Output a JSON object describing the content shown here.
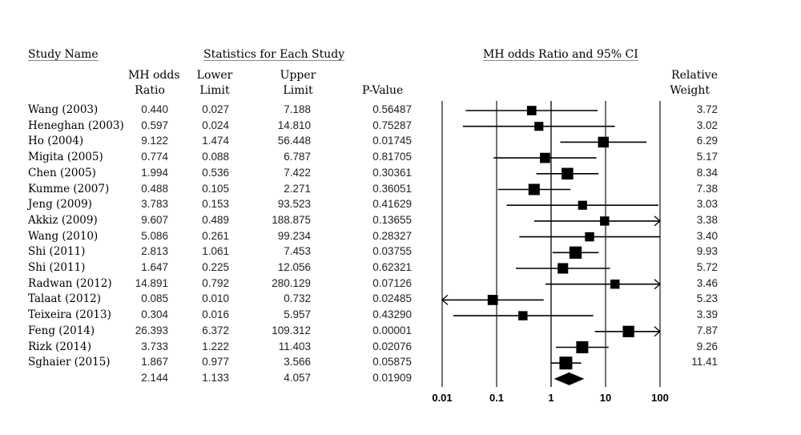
{
  "headers": {
    "study_name": "Study Name",
    "stats_group": "Statistics for Each Study",
    "mh_odds_line1": "MH odds",
    "mh_odds_line2": "Ratio",
    "lower_line1": "Lower",
    "lower_line2": "Limit",
    "upper_line1": "Upper",
    "upper_line2": "Limit",
    "pvalue": "P-Value",
    "plot_title": "MH odds Ratio and 95% CI",
    "weight_line1": "Relative",
    "weight_line2": "Weight"
  },
  "chart_data": {
    "type": "forest",
    "title": "MH odds Ratio and 95% CI",
    "x_scale": "log",
    "xlim": [
      0.01,
      100
    ],
    "x_ticks": [
      "0.01",
      "0.1",
      "1",
      "10",
      "100"
    ],
    "grid": true,
    "studies": [
      {
        "name": "Wang (2003)",
        "or": "0.440",
        "lower": "0.027",
        "upper": "7.188",
        "p": "0.56487",
        "weight": "3.72"
      },
      {
        "name": "Heneghan (2003)",
        "or": "0.597",
        "lower": "0.024",
        "upper": "14.810",
        "p": "0.75287",
        "weight": "3.02"
      },
      {
        "name": "Ho (2004)",
        "or": "9.122",
        "lower": "1.474",
        "upper": "56.448",
        "p": "0.01745",
        "weight": "6.29"
      },
      {
        "name": "Migita (2005)",
        "or": "0.774",
        "lower": "0.088",
        "upper": "6.787",
        "p": "0.81705",
        "weight": "5.17"
      },
      {
        "name": "Chen (2005)",
        "or": "1.994",
        "lower": "0.536",
        "upper": "7.422",
        "p": "0.30361",
        "weight": "8.34"
      },
      {
        "name": "Kumme (2007)",
        "or": "0.488",
        "lower": "0.105",
        "upper": "2.271",
        "p": "0.36051",
        "weight": "7.38"
      },
      {
        "name": "Jeng (2009)",
        "or": "3.783",
        "lower": "0.153",
        "upper": "93.523",
        "p": "0.41629",
        "weight": "3.03"
      },
      {
        "name": "Akkiz (2009)",
        "or": "9.607",
        "lower": "0.489",
        "upper": "188.875",
        "p": "0.13655",
        "weight": "3.38"
      },
      {
        "name": "Wang (2010)",
        "or": "5.086",
        "lower": "0.261",
        "upper": "99.234",
        "p": "0.28327",
        "weight": "3.40"
      },
      {
        "name": "Shi (2011)",
        "or": "2.813",
        "lower": "1.061",
        "upper": "7.453",
        "p": "0.03755",
        "weight": "9.93"
      },
      {
        "name": "Shi (2011)",
        "or": "1.647",
        "lower": "0.225",
        "upper": "12.056",
        "p": "0.62321",
        "weight": "5.72"
      },
      {
        "name": "Radwan (2012)",
        "or": "14.891",
        "lower": "0.792",
        "upper": "280.129",
        "p": "0.07126",
        "weight": "3.46"
      },
      {
        "name": "Talaat (2012)",
        "or": "0.085",
        "lower": "0.010",
        "upper": "0.732",
        "p": "0.02485",
        "weight": "5.23"
      },
      {
        "name": "Teixeira (2013)",
        "or": "0.304",
        "lower": "0.016",
        "upper": "5.957",
        "p": "0.43290",
        "weight": "3.39"
      },
      {
        "name": "Feng (2014)",
        "or": "26.393",
        "lower": "6.372",
        "upper": "109.312",
        "p": "0.00001",
        "weight": "7.87"
      },
      {
        "name": "Rizk (2014)",
        "or": "3.733",
        "lower": "1.222",
        "upper": "11.403",
        "p": "0.02076",
        "weight": "9.26"
      },
      {
        "name": "Sghaier (2015)",
        "or": "1.867",
        "lower": "0.977",
        "upper": "3.566",
        "p": "0.05875",
        "weight": "11.41"
      }
    ],
    "summary": {
      "or": "2.144",
      "lower": "1.133",
      "upper": "4.057",
      "p": "0.01909"
    }
  }
}
